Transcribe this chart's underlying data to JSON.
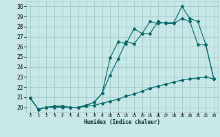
{
  "xlabel": "Humidex (Indice chaleur)",
  "bg_color": "#c8e8e8",
  "grid_color": "#a0c8c8",
  "line_color": "#006868",
  "xlim": [
    -0.5,
    23.5
  ],
  "ylim": [
    19.5,
    30.5
  ],
  "yticks": [
    20,
    21,
    22,
    23,
    24,
    25,
    26,
    27,
    28,
    29,
    30
  ],
  "xticks": [
    0,
    1,
    2,
    3,
    4,
    5,
    6,
    7,
    8,
    9,
    10,
    11,
    12,
    13,
    14,
    15,
    16,
    17,
    18,
    19,
    20,
    21,
    22,
    23
  ],
  "series1_x": [
    0,
    1,
    2,
    3,
    4,
    5,
    6,
    7,
    8,
    9,
    10,
    11,
    12,
    13,
    14,
    15,
    16,
    17,
    18,
    19,
    20,
    21,
    22,
    23
  ],
  "series1_y": [
    20.9,
    19.8,
    20.0,
    20.1,
    20.1,
    20.0,
    20.0,
    20.2,
    20.5,
    21.4,
    24.9,
    26.5,
    26.3,
    27.8,
    27.3,
    28.5,
    28.3,
    28.4,
    28.4,
    30.0,
    28.8,
    28.5,
    26.2,
    22.8
  ],
  "series2_x": [
    0,
    1,
    2,
    3,
    4,
    5,
    6,
    7,
    8,
    9,
    10,
    11,
    12,
    13,
    14,
    15,
    16,
    17,
    18,
    19,
    20,
    21,
    22,
    23
  ],
  "series2_y": [
    20.9,
    19.8,
    20.0,
    20.1,
    20.1,
    20.0,
    20.0,
    20.2,
    20.5,
    21.4,
    23.2,
    24.8,
    26.5,
    26.3,
    27.3,
    27.3,
    28.5,
    28.3,
    28.3,
    28.8,
    28.5,
    26.2,
    26.2,
    22.8
  ],
  "series3_x": [
    0,
    1,
    2,
    3,
    4,
    5,
    6,
    7,
    8,
    9,
    10,
    11,
    12,
    13,
    14,
    15,
    16,
    17,
    18,
    19,
    20,
    21,
    22,
    23
  ],
  "series3_y": [
    20.9,
    19.8,
    20.0,
    20.0,
    20.0,
    20.0,
    20.0,
    20.1,
    20.2,
    20.4,
    20.6,
    20.8,
    21.1,
    21.3,
    21.6,
    21.9,
    22.1,
    22.3,
    22.5,
    22.7,
    22.8,
    22.9,
    23.0,
    22.8
  ]
}
